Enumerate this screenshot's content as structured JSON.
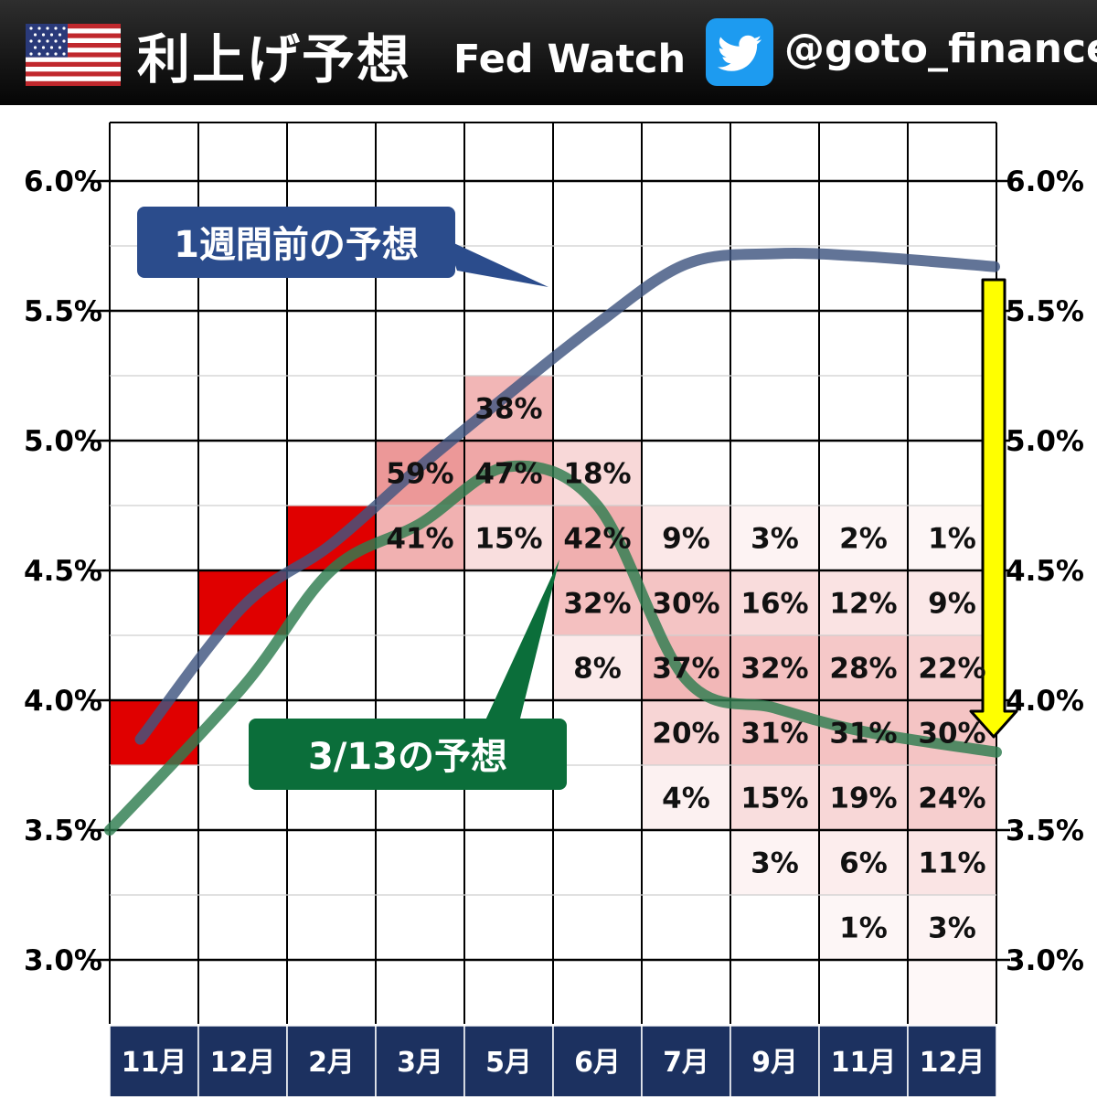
{
  "header": {
    "title": "利上げ予想",
    "subtitle": "Fed Watch",
    "handle": "@goto_finance",
    "flag_icon": "us-flag-icon",
    "social_icon": "twitter-bird-icon"
  },
  "chart_data": {
    "type": "heatmap",
    "y_ticks": [
      "6.0%",
      "5.5%",
      "5.0%",
      "4.5%",
      "4.0%",
      "3.5%",
      "3.0%"
    ],
    "y_tick_values": [
      6.0,
      5.5,
      5.0,
      4.5,
      4.0,
      3.5,
      3.0
    ],
    "x_labels": [
      "11月",
      "12月",
      "2月",
      "3月",
      "5月",
      "6月",
      "7月",
      "9月",
      "11月",
      "12月"
    ],
    "row_bin_lower_bounds": [
      6.0,
      5.75,
      5.5,
      5.25,
      5.0,
      4.75,
      4.5,
      4.25,
      4.0,
      3.75,
      3.5,
      3.25,
      3.0,
      2.75
    ],
    "current_range_cells": [
      {
        "col": 0,
        "bin": 3.75
      },
      {
        "col": 1,
        "bin": 4.25
      },
      {
        "col": 2,
        "bin": 4.5
      }
    ],
    "cells": [
      {
        "col": 3,
        "bin": 4.75,
        "value": 59,
        "label": "59%"
      },
      {
        "col": 3,
        "bin": 4.5,
        "value": 41,
        "label": "41%"
      },
      {
        "col": 4,
        "bin": 5.0,
        "value": 38,
        "label": "38%"
      },
      {
        "col": 4,
        "bin": 4.75,
        "value": 47,
        "label": "47%"
      },
      {
        "col": 4,
        "bin": 4.5,
        "value": 15,
        "label": "15%"
      },
      {
        "col": 5,
        "bin": 4.75,
        "value": 18,
        "label": "18%"
      },
      {
        "col": 5,
        "bin": 4.5,
        "value": 42,
        "label": "42%"
      },
      {
        "col": 5,
        "bin": 4.25,
        "value": 32,
        "label": "32%"
      },
      {
        "col": 5,
        "bin": 4.0,
        "value": 8,
        "label": "8%"
      },
      {
        "col": 6,
        "bin": 4.5,
        "value": 9,
        "label": "9%"
      },
      {
        "col": 6,
        "bin": 4.25,
        "value": 30,
        "label": "30%"
      },
      {
        "col": 6,
        "bin": 4.0,
        "value": 37,
        "label": "37%"
      },
      {
        "col": 6,
        "bin": 3.75,
        "value": 20,
        "label": "20%"
      },
      {
        "col": 6,
        "bin": 3.5,
        "value": 4,
        "label": "4%"
      },
      {
        "col": 7,
        "bin": 4.5,
        "value": 3,
        "label": "3%"
      },
      {
        "col": 7,
        "bin": 4.25,
        "value": 16,
        "label": "16%"
      },
      {
        "col": 7,
        "bin": 4.0,
        "value": 32,
        "label": "32%"
      },
      {
        "col": 7,
        "bin": 3.75,
        "value": 31,
        "label": "31%"
      },
      {
        "col": 7,
        "bin": 3.5,
        "value": 15,
        "label": "15%"
      },
      {
        "col": 7,
        "bin": 3.25,
        "value": 3,
        "label": "3%"
      },
      {
        "col": 8,
        "bin": 4.5,
        "value": 2,
        "label": "2%"
      },
      {
        "col": 8,
        "bin": 4.25,
        "value": 12,
        "label": "12%"
      },
      {
        "col": 8,
        "bin": 4.0,
        "value": 28,
        "label": "28%"
      },
      {
        "col": 8,
        "bin": 3.75,
        "value": 31,
        "label": "31%"
      },
      {
        "col": 8,
        "bin": 3.5,
        "value": 19,
        "label": "19%"
      },
      {
        "col": 8,
        "bin": 3.25,
        "value": 6,
        "label": "6%"
      },
      {
        "col": 8,
        "bin": 3.0,
        "value": 1,
        "label": "1%"
      },
      {
        "col": 9,
        "bin": 4.5,
        "value": 1,
        "label": "1%"
      },
      {
        "col": 9,
        "bin": 4.25,
        "value": 9,
        "label": "9%"
      },
      {
        "col": 9,
        "bin": 4.0,
        "value": 22,
        "label": "22%"
      },
      {
        "col": 9,
        "bin": 3.75,
        "value": 30,
        "label": "30%"
      },
      {
        "col": 9,
        "bin": 3.5,
        "value": 24,
        "label": "24%"
      },
      {
        "col": 9,
        "bin": 3.25,
        "value": 11,
        "label": "11%"
      },
      {
        "col": 9,
        "bin": 3.0,
        "value": 3,
        "label": "3%"
      },
      {
        "col": 9,
        "bin": 2.75,
        "value": 0,
        "label": ""
      }
    ],
    "series": [
      {
        "name": "1週間前の予想",
        "color": "#3f5580",
        "values": [
          3.85,
          4.36,
          4.6,
          4.9,
          5.18,
          5.45,
          5.68,
          5.72,
          5.71,
          5.67
        ]
      },
      {
        "name": "3/13の予想",
        "color": "#2e7d4f",
        "values": [
          3.5,
          4.05,
          4.5,
          4.68,
          4.9,
          4.75,
          4.08,
          3.97,
          3.88,
          3.8
        ]
      }
    ],
    "annotations": {
      "prev_label": "1週間前の予想",
      "prev_color": "#2b4c8c",
      "curr_label": "3/13の予想",
      "curr_color": "#0b6e3a",
      "arrow_color": "#ffff00"
    }
  }
}
